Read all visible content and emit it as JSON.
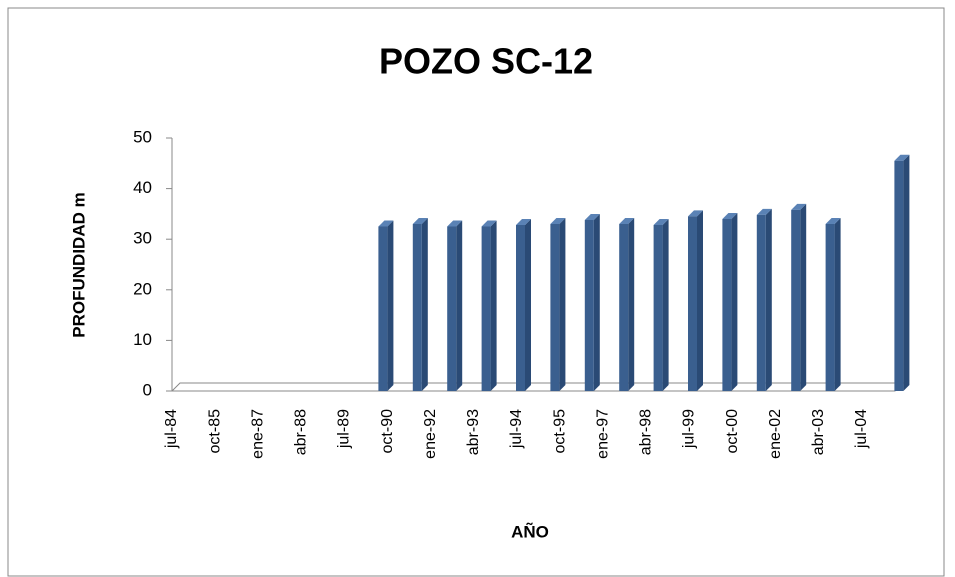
{
  "chart_data": {
    "type": "bar3d",
    "title": "POZO SC-12",
    "x_label": "AÑO",
    "y_label": "PROFUNDIDAD m",
    "x_tick_labels": [
      "jul-84",
      "oct-85",
      "ene-87",
      "abr-88",
      "jul-89",
      "oct-90",
      "ene-92",
      "abr-93",
      "jul-94",
      "oct-95",
      "ene-97",
      "abr-98",
      "jul-99",
      "oct-00",
      "ene-02",
      "abr-03",
      "jul-04"
    ],
    "categories": [
      null,
      null,
      null,
      null,
      null,
      null,
      null,
      null,
      null,
      null,
      null,
      null,
      null,
      null,
      null,
      null,
      null,
      null,
      null,
      null,
      null,
      null
    ],
    "values": [
      null,
      null,
      null,
      null,
      null,
      null,
      32.5,
      33,
      32.5,
      32.5,
      32.8,
      33,
      33.8,
      33,
      32.8,
      34.5,
      34,
      34.8,
      35.8,
      33,
      null,
      45.5
    ],
    "color": "#3a5f8f",
    "ylim": [
      0,
      50
    ],
    "yticks": [
      0,
      10,
      20,
      30,
      40,
      50
    ],
    "grid": false
  }
}
